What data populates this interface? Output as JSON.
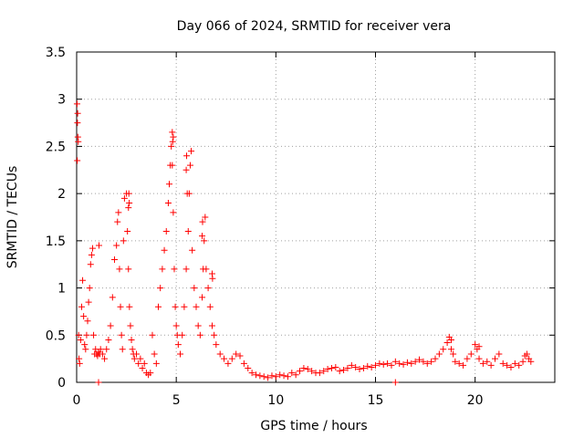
{
  "chart_data": {
    "type": "scatter",
    "title": "Day 066 of 2024, SRMTID for receiver vera",
    "xlabel": "GPS time / hours",
    "ylabel": "SRMTID / TECUs",
    "xlim": [
      0,
      24
    ],
    "ylim": [
      0,
      3.5
    ],
    "xticks": [
      0,
      5,
      10,
      15,
      20
    ],
    "xtick_labels": [
      "0",
      "5",
      "10",
      "15",
      "20"
    ],
    "yticks": [
      0,
      0.5,
      1,
      1.5,
      2,
      2.5,
      3,
      3.5
    ],
    "ytick_labels": [
      "0",
      "0.5",
      "1",
      "1.5",
      "2",
      "2.5",
      "3",
      "3.5"
    ],
    "grid": true,
    "marker": "+",
    "color": "#ff0000",
    "series": [
      {
        "name": "SRMTID",
        "x": [
          0.02,
          0.05,
          0.08,
          0.1,
          0.12,
          0.15,
          0.2,
          0.25,
          0.3,
          0.35,
          0.4,
          0.45,
          0.5,
          0.55,
          0.6,
          0.65,
          0.7,
          0.75,
          0.8,
          0.85,
          0.9,
          0.95,
          1.0,
          1.05,
          1.1,
          1.15,
          1.2,
          1.3,
          1.4,
          1.5,
          1.6,
          1.7,
          1.8,
          1.9,
          2.0,
          2.05,
          2.1,
          2.15,
          2.2,
          2.25,
          2.3,
          2.35,
          2.4,
          2.5,
          2.55,
          2.6,
          2.65,
          2.7,
          2.75,
          2.8,
          2.85,
          2.9,
          3.0,
          3.1,
          3.2,
          3.3,
          3.4,
          3.5,
          3.6,
          3.7,
          3.8,
          3.9,
          4.0,
          4.1,
          4.2,
          4.3,
          4.4,
          4.5,
          4.6,
          4.65,
          4.7,
          4.75,
          4.8,
          4.85,
          4.9,
          4.95,
          5.0,
          5.05,
          5.1,
          5.2,
          5.3,
          5.4,
          5.5,
          5.6,
          5.65,
          5.7,
          5.75,
          5.8,
          5.9,
          6.0,
          6.1,
          6.2,
          6.3,
          6.35,
          6.4,
          6.45,
          6.5,
          6.6,
          6.7,
          6.8,
          6.9,
          7.0,
          7.2,
          7.4,
          7.6,
          7.8,
          8.0,
          8.2,
          8.4,
          8.6,
          8.8,
          9.0,
          9.2,
          9.4,
          9.6,
          9.8,
          10.0,
          10.2,
          10.4,
          10.6,
          10.8,
          11.0,
          11.2,
          11.4,
          11.6,
          11.8,
          12.0,
          12.2,
          12.4,
          12.6,
          12.8,
          13.0,
          13.2,
          13.4,
          13.6,
          13.8,
          14.0,
          14.2,
          14.4,
          14.6,
          14.8,
          15.0,
          15.2,
          15.4,
          15.6,
          15.8,
          16.0,
          16.2,
          16.4,
          16.6,
          16.8,
          17.0,
          17.2,
          17.4,
          17.6,
          17.8,
          18.0,
          18.2,
          18.4,
          18.6,
          18.7,
          18.8,
          18.9,
          19.0,
          19.2,
          19.4,
          19.6,
          19.8,
          20.0,
          20.1,
          20.2,
          20.4,
          20.6,
          20.8,
          21.0,
          21.2,
          21.4,
          21.6,
          21.8,
          22.0,
          22.2,
          22.4,
          22.5,
          22.6,
          22.7,
          22.8,
          0.04,
          0.06,
          0.03,
          1.1,
          1.12,
          2.6,
          2.62,
          2.64,
          4.8,
          4.82,
          4.85,
          5.5,
          5.52,
          5.55,
          6.3,
          6.32,
          6.8,
          6.82,
          16.0,
          18.8,
          20.2
        ],
        "y": [
          2.95,
          2.85,
          2.55,
          0.5,
          0.25,
          0.2,
          0.45,
          0.8,
          1.08,
          0.7,
          0.4,
          0.35,
          0.5,
          0.65,
          0.85,
          1.0,
          1.25,
          1.35,
          1.42,
          0.5,
          0.3,
          0.35,
          0.3,
          0.28,
          0.32,
          0.3,
          0.35,
          0.3,
          0.25,
          0.35,
          0.45,
          0.6,
          0.9,
          1.3,
          1.45,
          1.7,
          1.8,
          1.2,
          0.8,
          0.5,
          0.35,
          1.5,
          1.95,
          2.0,
          1.6,
          1.2,
          0.8,
          0.6,
          0.45,
          0.35,
          0.3,
          0.25,
          0.3,
          0.2,
          0.25,
          0.15,
          0.2,
          0.1,
          0.08,
          0.1,
          0.5,
          0.3,
          0.2,
          0.8,
          1.0,
          1.2,
          1.4,
          1.6,
          1.9,
          2.1,
          2.3,
          2.5,
          2.65,
          1.8,
          1.2,
          0.8,
          0.6,
          0.5,
          0.4,
          0.3,
          0.5,
          0.8,
          1.2,
          1.6,
          2.0,
          2.3,
          2.45,
          1.4,
          1.0,
          0.8,
          0.6,
          0.5,
          0.9,
          1.2,
          1.5,
          1.75,
          1.2,
          1.0,
          0.8,
          0.6,
          0.5,
          0.4,
          0.3,
          0.25,
          0.2,
          0.25,
          0.3,
          0.28,
          0.2,
          0.15,
          0.1,
          0.08,
          0.07,
          0.06,
          0.05,
          0.07,
          0.06,
          0.08,
          0.07,
          0.06,
          0.1,
          0.08,
          0.12,
          0.15,
          0.14,
          0.12,
          0.1,
          0.1,
          0.12,
          0.14,
          0.15,
          0.16,
          0.12,
          0.13,
          0.15,
          0.18,
          0.16,
          0.14,
          0.15,
          0.17,
          0.16,
          0.18,
          0.2,
          0.19,
          0.2,
          0.18,
          0.22,
          0.2,
          0.19,
          0.21,
          0.2,
          0.22,
          0.24,
          0.22,
          0.2,
          0.22,
          0.25,
          0.3,
          0.35,
          0.42,
          0.48,
          0.35,
          0.3,
          0.22,
          0.2,
          0.18,
          0.25,
          0.3,
          0.4,
          0.35,
          0.25,
          0.2,
          0.22,
          0.18,
          0.25,
          0.3,
          0.2,
          0.18,
          0.16,
          0.2,
          0.18,
          0.22,
          0.28,
          0.3,
          0.25,
          0.22,
          2.75,
          2.6,
          2.35,
          0.0,
          1.45,
          1.85,
          2.0,
          1.9,
          2.3,
          2.55,
          2.6,
          2.25,
          2.4,
          2.0,
          1.55,
          1.7,
          1.15,
          1.1,
          0.0,
          0.45,
          0.38
        ]
      }
    ]
  }
}
